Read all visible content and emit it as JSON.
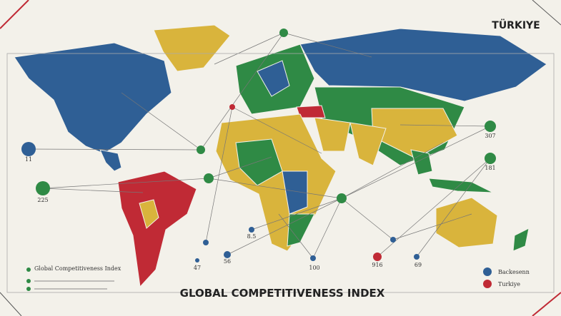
{
  "header": {
    "title": "TÜRKIYE"
  },
  "footer": {
    "title": "GLOBAL COMPETITIVENESS INDEX"
  },
  "nodes": [
    {
      "label": "307"
    },
    {
      "label": "181"
    },
    {
      "label": "11"
    },
    {
      "label": "225"
    },
    {
      "label": "8.5"
    },
    {
      "label": "47"
    },
    {
      "label": "56"
    },
    {
      "label": "100"
    },
    {
      "label": "916"
    },
    {
      "label": "69"
    }
  ],
  "legend_left": {
    "title": "Global Competitiveness Index"
  },
  "legend_right": [
    {
      "label": "Backesenn"
    },
    {
      "label": "Turkiye"
    }
  ]
}
